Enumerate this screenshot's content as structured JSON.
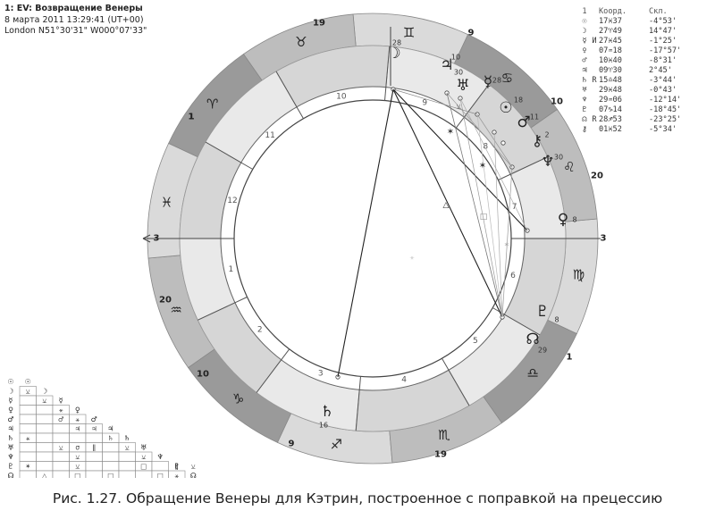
{
  "header": {
    "line1": "1: EV: Возвращение Венеры",
    "line2": "8 марта 2011 13:29:41 (UT+00)",
    "line3": "London N51°30'31\" W000°07'33\""
  },
  "positions_table": {
    "col_index": "1",
    "col_coord": "Коорд.",
    "col_decl": "Скл.",
    "rows": [
      {
        "glyph": "☉",
        "retro": "",
        "coord": "17♓37",
        "decl": "-4°53'"
      },
      {
        "glyph": "☽",
        "retro": "",
        "coord": "27♈49",
        "decl": "14°47'"
      },
      {
        "glyph": "☿",
        "retro": "И",
        "coord": "27♓45",
        "decl": "-1°25'"
      },
      {
        "glyph": "♀",
        "retro": "",
        "coord": "07♒18",
        "decl": "-17°57'"
      },
      {
        "glyph": "♂",
        "retro": "",
        "coord": "10♓40",
        "decl": "-8°31'"
      },
      {
        "glyph": "♃",
        "retro": "",
        "coord": "09♈30",
        "decl": "2°45'"
      },
      {
        "glyph": "♄",
        "retro": "R",
        "coord": "15♎48",
        "decl": "-3°44'"
      },
      {
        "glyph": "♅",
        "retro": "",
        "coord": "29♓48",
        "decl": "-0°43'"
      },
      {
        "glyph": "♆",
        "retro": "",
        "coord": "29♒06",
        "decl": "-12°14'"
      },
      {
        "glyph": "♇",
        "retro": "",
        "coord": "07♑14",
        "decl": "-18°45'"
      },
      {
        "glyph": "☊",
        "retro": "R",
        "coord": "28♐53",
        "decl": "-23°25'"
      },
      {
        "glyph": "⚷",
        "retro": "",
        "coord": "01♓52",
        "decl": "-5°34'"
      }
    ]
  },
  "wheel": {
    "sign_glyphs": [
      "♈",
      "♉",
      "♊",
      "♋",
      "♌",
      "♍",
      "♎",
      "♏",
      "♐",
      "♑",
      "♒",
      "♓"
    ],
    "house_numbers": [
      "1",
      "2",
      "3",
      "4",
      "5",
      "6",
      "7",
      "8",
      "9",
      "10",
      "11",
      "12"
    ],
    "cusp_degrees": [
      {
        "cusp": "1",
        "deg": "1"
      },
      {
        "cusp": "2",
        "deg": "20"
      },
      {
        "cusp": "3",
        "deg": "10"
      },
      {
        "cusp": "4",
        "deg": "9"
      },
      {
        "cusp": "5",
        "deg": "19"
      },
      {
        "cusp": "6",
        "deg": "1"
      },
      {
        "cusp": "7",
        "deg": "3"
      },
      {
        "cusp": "8",
        "deg": "20"
      },
      {
        "cusp": "9",
        "deg": "10"
      },
      {
        "cusp": "10",
        "deg": "9"
      },
      {
        "cusp": "11",
        "deg": "19"
      },
      {
        "cusp": "12",
        "deg": "1"
      },
      {
        "cusp": "Asc",
        "deg": "3"
      }
    ],
    "planets": [
      {
        "name": "moon",
        "glyph": "☽",
        "deg": "28"
      },
      {
        "name": "jupiter",
        "glyph": "♃",
        "deg": "10"
      },
      {
        "name": "uranus",
        "glyph": "♅",
        "deg": "30"
      },
      {
        "name": "mercury",
        "glyph": "☿",
        "deg": "28"
      },
      {
        "name": "sun",
        "glyph": "☉",
        "deg": "18"
      },
      {
        "name": "mars",
        "glyph": "♂",
        "deg": "11"
      },
      {
        "name": "chiron",
        "glyph": "⚷",
        "deg": "2"
      },
      {
        "name": "neptune",
        "glyph": "♆",
        "deg": "30"
      },
      {
        "name": "venus",
        "glyph": "♀",
        "deg": "8"
      },
      {
        "name": "pluto",
        "glyph": "♇",
        "deg": "8"
      },
      {
        "name": "node",
        "glyph": "☊",
        "deg": "29"
      },
      {
        "name": "saturn",
        "glyph": "♄",
        "deg": "16"
      }
    ]
  },
  "aspect_grid": {
    "planet_glyphs": [
      "☉",
      "☽",
      "☿",
      "♀",
      "♂",
      "♃",
      "♄",
      "♅",
      "♆",
      "♇",
      "☊"
    ],
    "aspects": [
      {
        "row": 1,
        "col": 0,
        "glyph": "⚺"
      },
      {
        "row": 2,
        "col": 1,
        "glyph": "⚺"
      },
      {
        "row": 3,
        "col": 2,
        "glyph": "⚹"
      },
      {
        "row": 4,
        "col": 3,
        "glyph": "⚹"
      },
      {
        "row": 4,
        "col": 2,
        "glyph": "♂"
      },
      {
        "row": 5,
        "col": 4,
        "glyph": "♃"
      },
      {
        "row": 5,
        "col": 3,
        "glyph": "♃"
      },
      {
        "row": 6,
        "col": 0,
        "glyph": "⚹"
      },
      {
        "row": 6,
        "col": 5,
        "glyph": "♄"
      },
      {
        "row": 7,
        "col": 2,
        "glyph": "⚺"
      },
      {
        "row": 7,
        "col": 3,
        "glyph": "σ"
      },
      {
        "row": 7,
        "col": 4,
        "glyph": "ǁ"
      },
      {
        "row": 7,
        "col": 6,
        "glyph": "⚺"
      },
      {
        "row": 8,
        "col": 3,
        "glyph": "⚺"
      },
      {
        "row": 8,
        "col": 7,
        "glyph": "⚺"
      },
      {
        "row": 9,
        "col": 0,
        "glyph": "✶"
      },
      {
        "row": 9,
        "col": 3,
        "glyph": "⚺"
      },
      {
        "row": 9,
        "col": 7,
        "glyph": "□"
      },
      {
        "row": 9,
        "col": 9,
        "glyph": "ǁ"
      },
      {
        "row": 9,
        "col": 10,
        "glyph": "⚺"
      },
      {
        "row": 10,
        "col": 1,
        "glyph": "△"
      },
      {
        "row": 10,
        "col": 3,
        "glyph": "□"
      },
      {
        "row": 10,
        "col": 5,
        "glyph": "□"
      },
      {
        "row": 10,
        "col": 8,
        "glyph": "□"
      },
      {
        "row": 10,
        "col": 9,
        "glyph": "⚹"
      }
    ]
  },
  "caption": "Рис. 1.27. Обращение Венеры для Кэтрин, построенное с поправкой на прецессию",
  "colors": {
    "zodiac_dark": "#9a9a9a",
    "zodiac_mid": "#bdbdbd",
    "zodiac_light": "#dadada",
    "house_light": "#e9e9e9",
    "house_dark": "#d6d6d6",
    "line": "#333333"
  }
}
